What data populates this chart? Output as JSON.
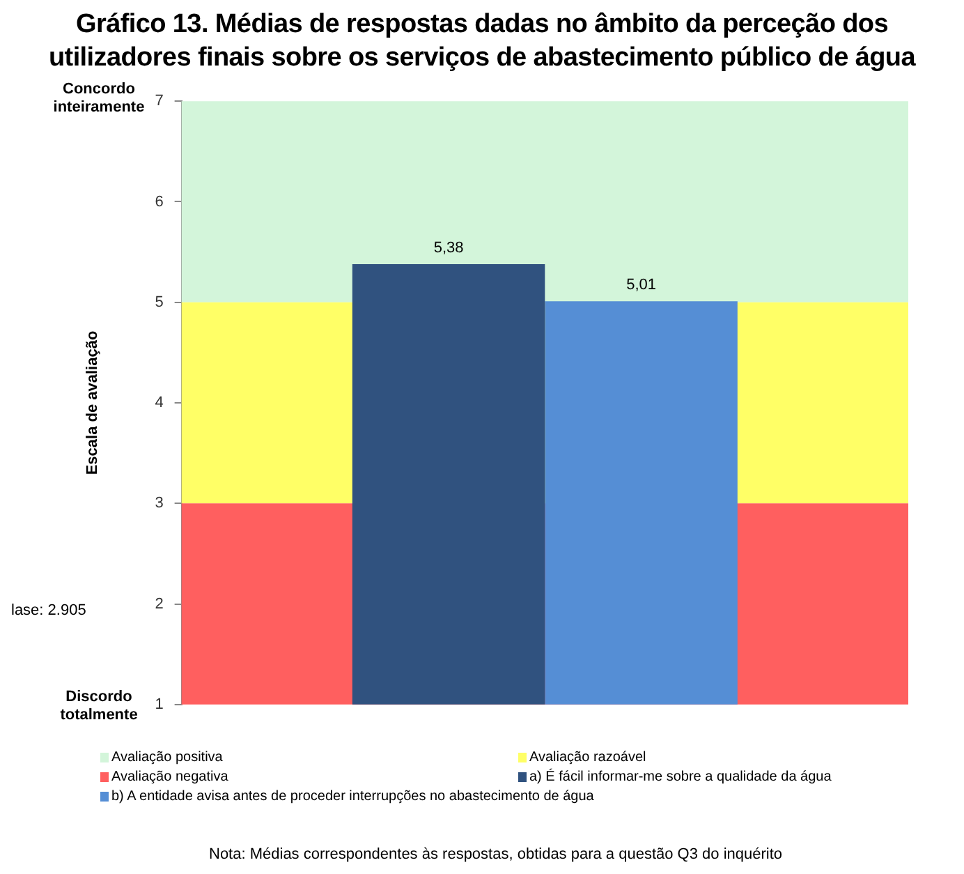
{
  "chart_data": {
    "type": "bar",
    "title": "Gráfico 13. Médias de respostas dadas no âmbito da perceção dos utilizadores finais sobre os serviços de abastecimento público de água",
    "ylabel": "Escala de avaliação",
    "categories": [
      null
    ],
    "series": [
      {
        "name": "a) É fácil informar-me sobre a qualidade da água",
        "color": "#30527f",
        "values": [
          5.38
        ],
        "value_labels": [
          "5,38"
        ]
      },
      {
        "name": "b) A entidade avisa antes de proceder interrupções no abastecimento de água",
        "color": "#558ed5",
        "values": [
          5.01
        ],
        "value_labels": [
          "5,01"
        ]
      }
    ],
    "bands": [
      {
        "axis": "y",
        "from": 5,
        "to": 7,
        "label": "Avaliação positiva",
        "color": "#d3f5da"
      },
      {
        "axis": "y",
        "from": 3,
        "to": 5,
        "label": "Avaliação razoável",
        "color": "#ffff66"
      },
      {
        "axis": "y",
        "from": 1,
        "to": 3,
        "label": "Avaliação negativa",
        "color": "#ff5f5f"
      }
    ],
    "ylim": [
      1,
      7
    ],
    "yticks": [
      1,
      2,
      3,
      4,
      5,
      6,
      7
    ],
    "grid": false,
    "legend": "bottom",
    "annotations": [
      "Concordo inteiramente",
      "Discordo totalmente",
      "lase: 2.905",
      "Nota: Médias correspondentes às respostas, obtidas para a questão Q3 do inquérito"
    ]
  }
}
